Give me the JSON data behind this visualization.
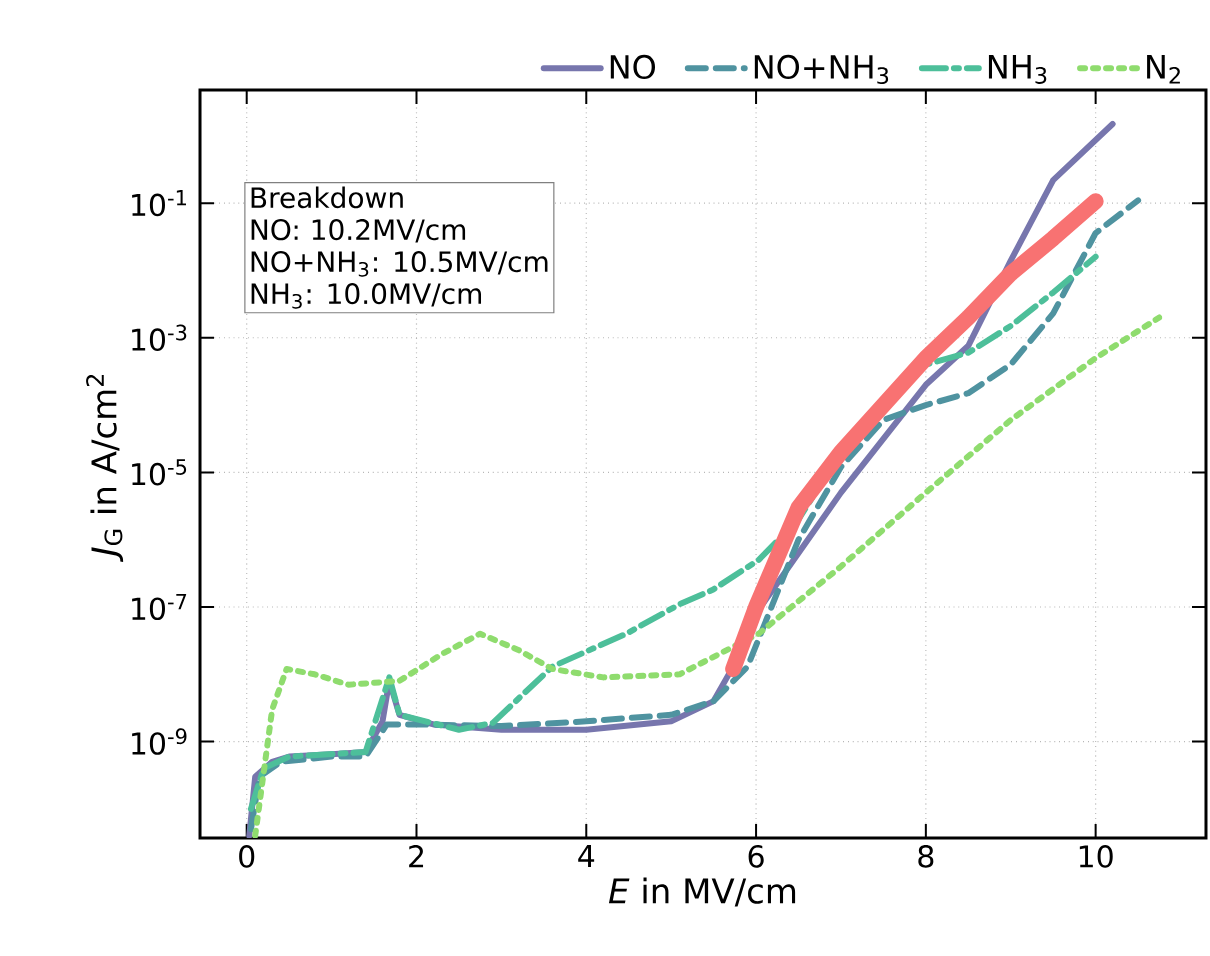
{
  "chart_data": {
    "type": "line",
    "xlabel": "*E* in MV/cm",
    "ylabel": "*J*$_{G}$ in A/cm$^{2}$",
    "xlim": [
      -0.55,
      11.3
    ],
    "ylim": [
      3.7e-11,
      4.8
    ],
    "xticks": [
      0,
      2,
      4,
      6,
      8,
      10
    ],
    "yticks": [
      {
        "value": 1e-09,
        "label": "10$^{-9}$"
      },
      {
        "value": 1e-07,
        "label": "10$^{-7}$"
      },
      {
        "value": 1e-05,
        "label": "10$^{-5}$"
      },
      {
        "value": 0.001,
        "label": "10$^{-3}$"
      },
      {
        "value": 0.1,
        "label": "10$^{-1}$"
      }
    ],
    "log": "y",
    "grid": true,
    "legend": "top",
    "annotations": [
      "Breakdown",
      "NO: 10.2MV/cm",
      "NO+NH$_{3}$: 10.5MV/cm",
      "NH$_{3}$: 10.0MV/cm"
    ],
    "series": [
      {
        "name": "NO",
        "color": "#7776ad",
        "line_style": "solid",
        "x": [
          0.03,
          0.1,
          0.3,
          0.5,
          1.0,
          1.4,
          1.6,
          1.68,
          1.8,
          2.2,
          3.0,
          4.0,
          5.0,
          5.5,
          5.73,
          6.0,
          7.0,
          8.0,
          8.5,
          9.0,
          9.5,
          10.2
        ],
        "values": [
          4e-11,
          3e-10,
          5e-10,
          6e-10,
          6.5e-10,
          7e-10,
          2e-09,
          8e-09,
          2.5e-09,
          1.8e-09,
          1.5e-09,
          1.5e-09,
          2e-09,
          4e-09,
          1.3e-08,
          8e-08,
          5e-06,
          0.0002,
          0.00076,
          0.014,
          0.22,
          1.5
        ]
      },
      {
        "name": "NO+NH$_{3}$",
        "color": "#4f93a0",
        "line_style": "dashed",
        "x": [
          0.05,
          0.15,
          0.4,
          1.0,
          1.4,
          1.65,
          2.0,
          3.0,
          4.0,
          5.0,
          5.5,
          5.9,
          6.5,
          7.0,
          7.5,
          8.0,
          8.5,
          9.0,
          9.5,
          10.0,
          10.5
        ],
        "values": [
          5e-11,
          3e-10,
          5e-10,
          6e-10,
          6e-10,
          1.8e-09,
          1.8e-09,
          1.7e-09,
          2e-09,
          2.5e-09,
          4e-09,
          1.3e-08,
          1e-06,
          1.2e-05,
          6e-05,
          0.0001,
          0.00015,
          0.0004,
          0.0023,
          0.036,
          0.11
        ]
      },
      {
        "name": "NH$_{3}$",
        "color": "#4dbf9a",
        "line_style": "dashdot",
        "x": [
          0.05,
          0.2,
          0.5,
          1.4,
          1.68,
          1.8,
          2.5,
          2.9,
          3.6,
          4.47,
          5.1,
          5.49,
          6.03,
          6.5,
          7.0,
          7.5,
          8.0,
          8.5,
          9.0,
          9.5,
          10.0
        ],
        "values": [
          1e-10,
          4e-10,
          6e-10,
          7e-10,
          9e-09,
          2.5e-09,
          1.5e-09,
          1.9e-09,
          1.3e-08,
          4e-08,
          1.1e-07,
          1.8e-07,
          5e-07,
          2e-06,
          2e-05,
          0.0001,
          0.0004,
          0.0006,
          0.0015,
          0.0047,
          0.016
        ]
      },
      {
        "name": "N$_{2}$",
        "color": "#8fdc6e",
        "line_style": "dotted",
        "x": [
          0.1,
          0.3,
          0.47,
          0.8,
          1.2,
          1.8,
          2.3,
          2.75,
          3.2,
          3.6,
          4.2,
          5.1,
          6.03,
          7.0,
          8.0,
          9.0,
          10.0,
          10.75
        ],
        "values": [
          4e-11,
          3e-09,
          1.2e-08,
          1e-08,
          7e-09,
          8e-09,
          2e-08,
          4e-08,
          2.3e-08,
          1.2e-08,
          9e-09,
          1e-08,
          4e-08,
          4e-07,
          5e-06,
          6e-05,
          0.0005,
          0.002
        ]
      },
      {
        "color": "#f87272",
        "line_style": "solid",
        "x": [
          5.73,
          6.0,
          6.5,
          7.0,
          7.5,
          8.0,
          8.5,
          9.0,
          9.5,
          10.0
        ],
        "values": [
          1.2e-08,
          1e-07,
          3e-06,
          2e-05,
          0.0001,
          0.0005,
          0.002,
          0.009,
          0.03,
          0.107
        ]
      }
    ]
  }
}
